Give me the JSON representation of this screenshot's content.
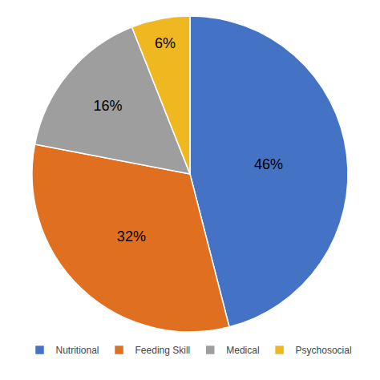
{
  "chart_data": {
    "type": "pie",
    "categories": [
      "Nutritional",
      "Feeding Skill",
      "Medical",
      "Psychosocial"
    ],
    "values": [
      46,
      32,
      16,
      6
    ],
    "value_labels": [
      "46%",
      "32%",
      "16%",
      "6%"
    ],
    "colors": [
      "#4472C4",
      "#E07020",
      "#9E9E9E",
      "#F0B820"
    ],
    "data_labels": true,
    "legend": "bottom"
  }
}
